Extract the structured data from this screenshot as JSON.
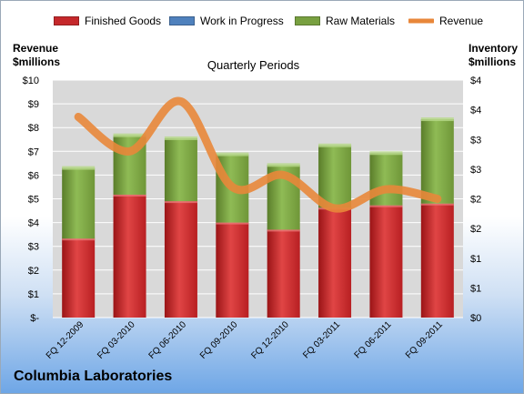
{
  "legend": {
    "finished_goods": "Finished Goods",
    "work_in_progress": "Work in Progress",
    "raw_materials": "Raw Materials",
    "revenue": "Revenue"
  },
  "axes": {
    "left_title_line1": "Revenue",
    "left_title_line2": "$millions",
    "right_title_line1": "Inventory",
    "right_title_line2": "$millions",
    "plot_title": "Quarterly Periods"
  },
  "company": "Columbia Laboratories",
  "colors": {
    "finished_goods": "#c5282b",
    "work_in_progress": "#4f81bd",
    "raw_materials": "#78a040",
    "revenue": "#e8873a"
  },
  "chart_data": {
    "type": "bar",
    "stacked": true,
    "categories": [
      "FQ 12-2009",
      "FQ 03-2010",
      "FQ 06-2010",
      "FQ 09-2010",
      "FQ 12-2010",
      "FQ 03-2011",
      "FQ 06-2011",
      "FQ 09-2011"
    ],
    "series": [
      {
        "name": "Finished Goods",
        "axis": "right",
        "values": [
          1.33,
          2.07,
          1.96,
          1.6,
          1.48,
          1.85,
          1.89,
          1.92
        ]
      },
      {
        "name": "Work in Progress",
        "axis": "right",
        "values": [
          0,
          0,
          0,
          0,
          0,
          0,
          0,
          0
        ]
      },
      {
        "name": "Raw Materials",
        "axis": "right",
        "values": [
          1.19,
          1.0,
          1.06,
          1.15,
          1.09,
          1.05,
          0.88,
          1.42
        ]
      },
      {
        "name": "Revenue",
        "type": "line",
        "axis": "left",
        "values": [
          8.45,
          7.0,
          9.1,
          5.5,
          6.0,
          4.6,
          5.4,
          5.0
        ]
      }
    ],
    "left_axis": {
      "min": 0,
      "max": 10,
      "step": 1,
      "ticks": [
        "$-",
        "$1",
        "$2",
        "$3",
        "$4",
        "$5",
        "$6",
        "$7",
        "$8",
        "$9",
        "$10"
      ]
    },
    "right_axis": {
      "min": 0,
      "max": 4,
      "step": 0.5,
      "ticks": [
        "$0",
        "$1",
        "$1",
        "$2",
        "$2",
        "$3",
        "$3",
        "$4",
        "$4"
      ]
    },
    "grid": true,
    "legend_position": "top"
  }
}
